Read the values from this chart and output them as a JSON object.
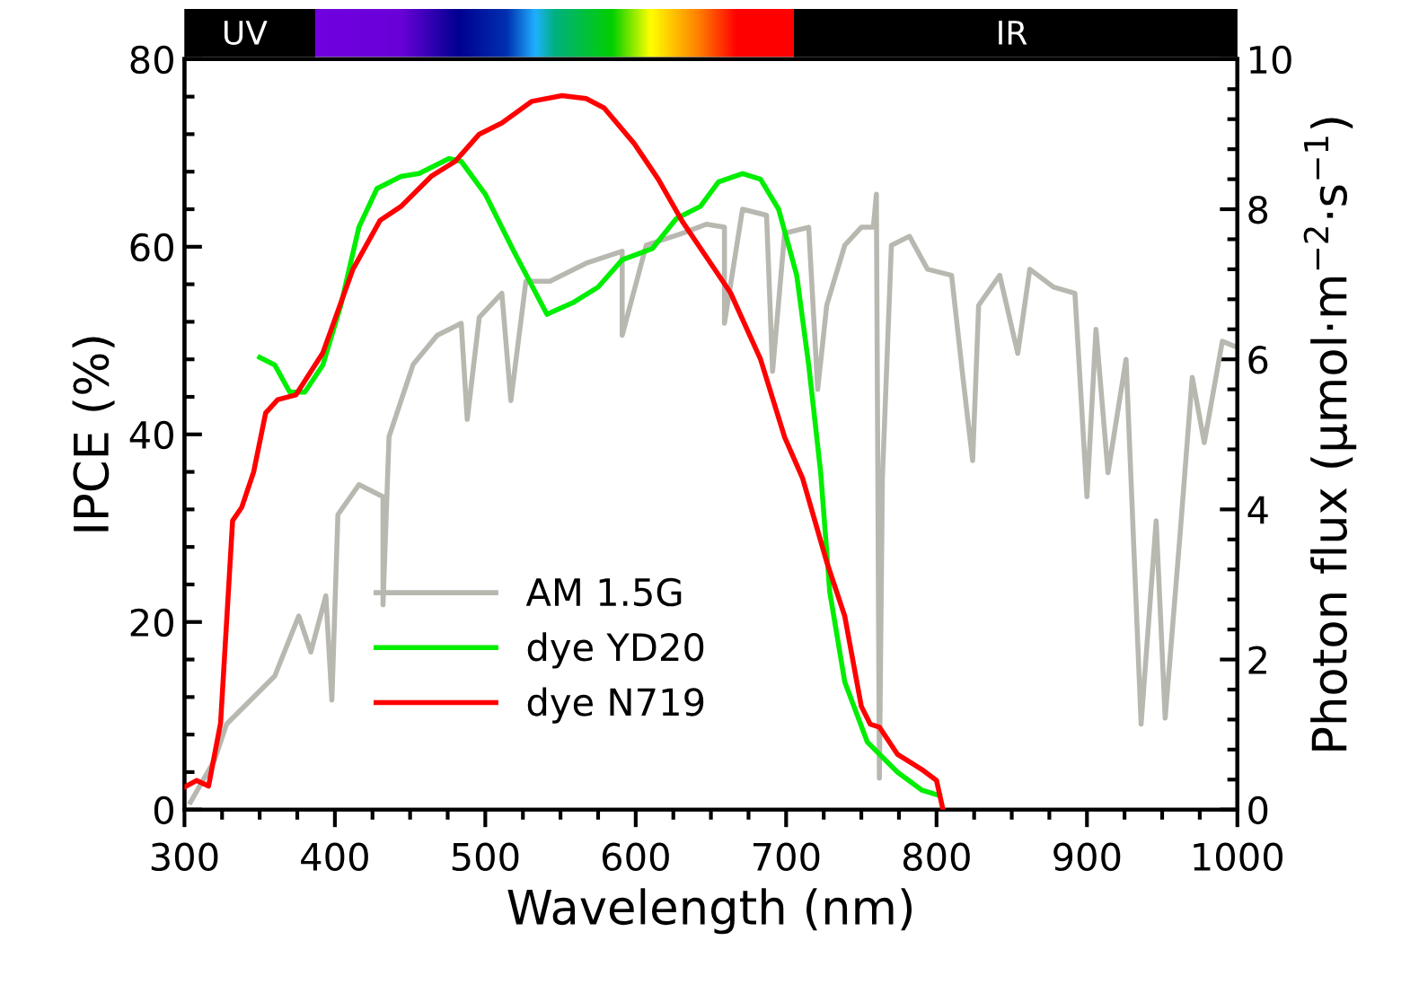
{
  "chart_data": {
    "type": "line",
    "xlabel": "Wavelength (nm)",
    "ylabel": "IPCE (%)",
    "y2label": "Photon flux (μmol·m$^{−2}$·s$^{−1}$)",
    "xlim": [
      300,
      1000
    ],
    "xticks": [
      300,
      400,
      500,
      600,
      700,
      800,
      900,
      1000
    ],
    "ylim": [
      0,
      80
    ],
    "yticks": [
      0,
      20,
      40,
      60,
      80
    ],
    "y2lim": [
      0,
      10
    ],
    "y2ticks": [
      0,
      2,
      4,
      6,
      8,
      10
    ],
    "legend": "bottom left",
    "grid": false,
    "marker": "none",
    "line_style": "solid",
    "annotations": [
      "UV",
      "IR"
    ],
    "series": [
      {
        "name": "AM 1.5G",
        "color": "#b8b8b0",
        "axis": "y2",
        "x": [
          304,
          320,
          328,
          344,
          360,
          376,
          384,
          394,
          398,
          402,
          416,
          432,
          432,
          436,
          452,
          468,
          484,
          488,
          496,
          511,
          517,
          527,
          543,
          567,
          591,
          591,
          607,
          631,
          647,
          659,
          659,
          671,
          687,
          691,
          699,
          715,
          721,
          727,
          739,
          750,
          758,
          760,
          762,
          764,
          770,
          782,
          794,
          810,
          818,
          824,
          828,
          842,
          854,
          862,
          878,
          892,
          900,
          906,
          914,
          926,
          936,
          946,
          952,
          962,
          970,
          978,
          990,
          1000
        ],
        "values": [
          0.1,
          0.66,
          1.14,
          1.46,
          1.78,
          2.58,
          2.1,
          2.85,
          1.46,
          3.93,
          4.33,
          4.17,
          2.73,
          4.97,
          5.93,
          6.32,
          6.48,
          5.2,
          6.56,
          6.88,
          5.45,
          7.04,
          7.04,
          7.28,
          7.44,
          6.32,
          7.52,
          7.68,
          7.8,
          7.76,
          6.48,
          8.0,
          7.92,
          5.84,
          7.68,
          7.76,
          5.6,
          6.72,
          7.52,
          7.76,
          7.76,
          8.2,
          0.42,
          4.41,
          7.52,
          7.64,
          7.2,
          7.12,
          5.68,
          4.65,
          6.72,
          7.12,
          6.08,
          7.2,
          6.96,
          6.88,
          4.17,
          6.4,
          4.49,
          6.0,
          1.14,
          3.85,
          1.22,
          3.69,
          5.76,
          4.89,
          6.24,
          6.16
        ]
      },
      {
        "name": "dye YD20",
        "color": "#00ee00",
        "x": [
          350,
          360,
          370,
          380,
          392,
          404,
          416,
          428,
          444,
          456,
          476,
          484,
          500,
          519,
          541,
          559,
          575,
          591,
          611,
          627,
          643,
          655,
          671,
          683,
          695,
          707,
          715,
          723,
          729,
          739,
          754,
          774,
          790,
          802
        ],
        "values": [
          48.2,
          47.4,
          44.5,
          44.5,
          47.4,
          53.8,
          62.1,
          66.2,
          67.5,
          67.8,
          69.4,
          69.1,
          65.6,
          59.5,
          52.8,
          54.1,
          55.7,
          58.6,
          59.8,
          63,
          64.3,
          66.9,
          67.8,
          67.2,
          64,
          57,
          47.4,
          35.9,
          23.2,
          13.6,
          7.2,
          4,
          2.1,
          1.5
        ]
      },
      {
        "name": "dye N719",
        "color": "#ff0000",
        "x": [
          300,
          308,
          316,
          324,
          332,
          338,
          346,
          354,
          362,
          374,
          392,
          412,
          430,
          444,
          464,
          480,
          496,
          511,
          531,
          551,
          567,
          579,
          599,
          615,
          631,
          647,
          663,
          683,
          699,
          711,
          727,
          739,
          750,
          756,
          762,
          774,
          790,
          800,
          804
        ],
        "values": [
          2.4,
          3.1,
          2.5,
          9.2,
          30.8,
          32.2,
          36,
          42.3,
          43.7,
          44.2,
          48.7,
          57.6,
          62.8,
          64.3,
          67.5,
          69.1,
          72,
          73.2,
          75.5,
          76.1,
          75.8,
          74.8,
          71,
          67.2,
          62.7,
          58.9,
          55.1,
          48,
          39.7,
          35.3,
          26.4,
          20.6,
          11,
          9.1,
          8.8,
          5.9,
          4.3,
          3.1,
          0.2
        ]
      }
    ]
  }
}
